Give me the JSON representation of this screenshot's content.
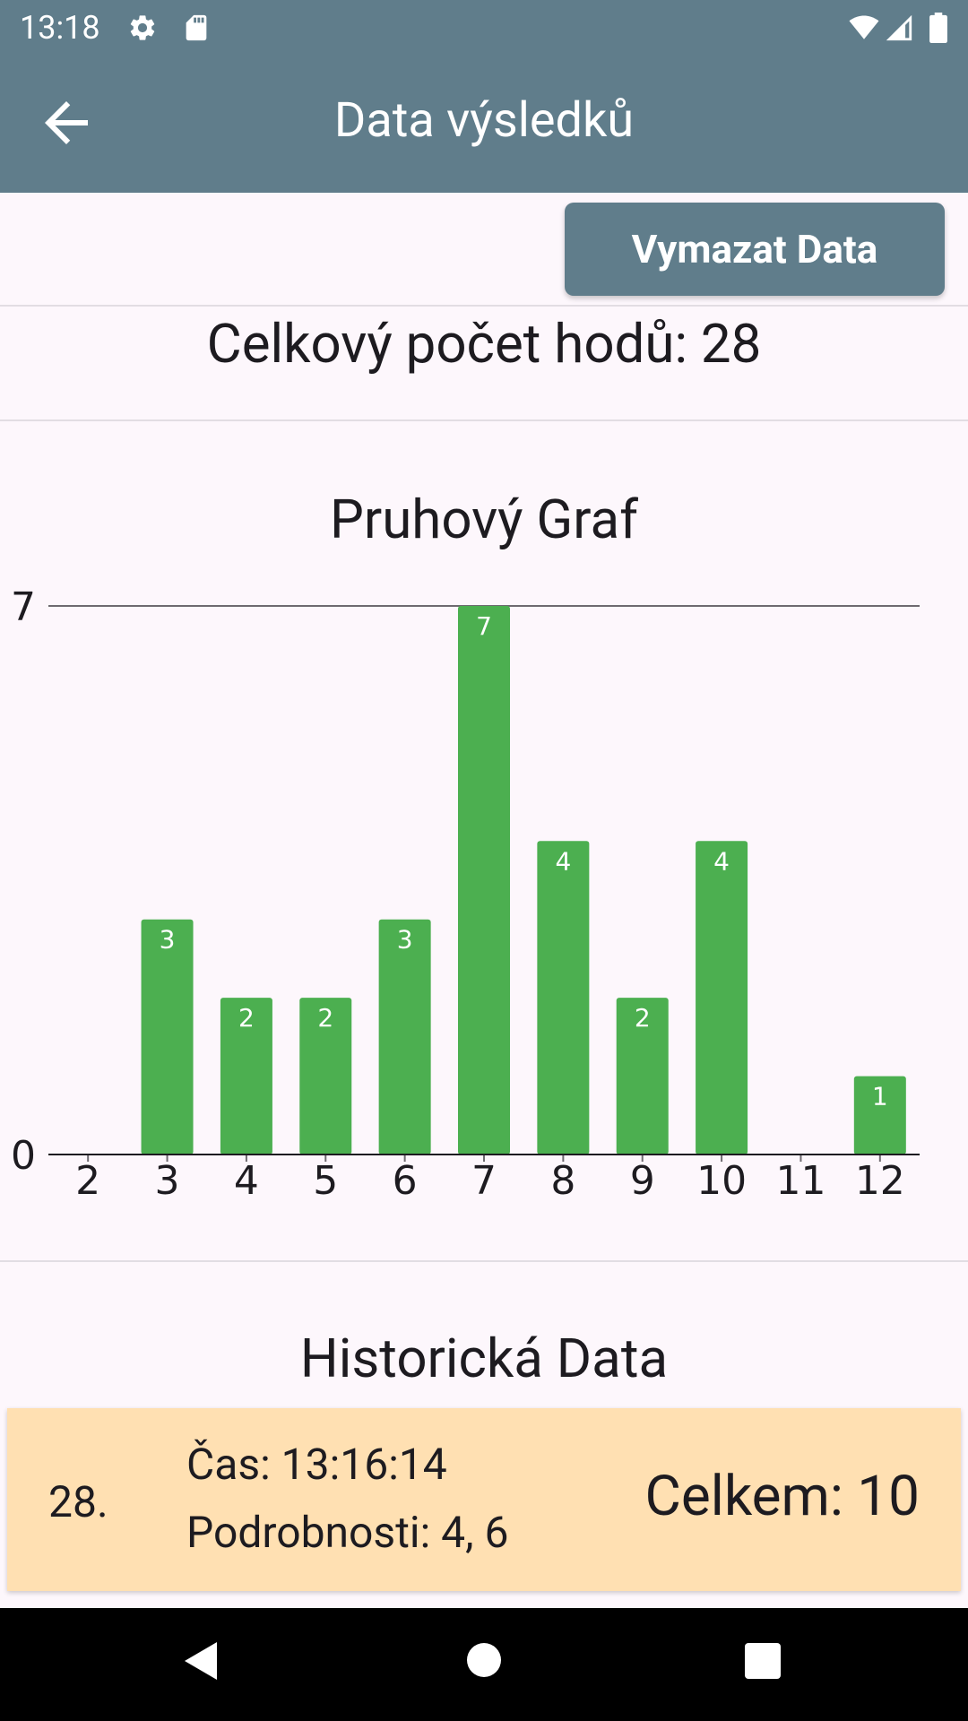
{
  "status_bar": {
    "time": "13:18",
    "icons": [
      "gear-icon",
      "sd-card-icon",
      "wifi-icon",
      "cell-signal-icon",
      "battery-icon"
    ]
  },
  "app_bar": {
    "title": "Data výsledků",
    "back_icon": "arrow-left-icon",
    "color": "#607d8b"
  },
  "actions": {
    "clear_label": "Vymazat Data"
  },
  "summary": {
    "total_label": "Celkový počet hodů: 28"
  },
  "chart_title": "Pruhový Graf",
  "chart_data": {
    "type": "bar",
    "title": "Pruhový Graf",
    "categories": [
      "2",
      "3",
      "4",
      "5",
      "6",
      "7",
      "8",
      "9",
      "10",
      "11",
      "12"
    ],
    "values": [
      0,
      3,
      2,
      2,
      3,
      7,
      4,
      2,
      4,
      0,
      1
    ],
    "ylim": [
      0,
      7
    ],
    "y_ticks": [
      "0",
      "7"
    ],
    "bar_color": "#4caf50",
    "grid": false
  },
  "history": {
    "title": "Historická Data",
    "records": [
      {
        "index": "28.",
        "time": "Čas: 13:16:14",
        "details": "Podrobnosti: 4, 6",
        "total": "Celkem: 10"
      }
    ],
    "card_color": "#ffe0b2"
  },
  "nav_bar": {
    "icons": [
      "back-triangle-icon",
      "home-circle-icon",
      "recents-square-icon"
    ]
  }
}
